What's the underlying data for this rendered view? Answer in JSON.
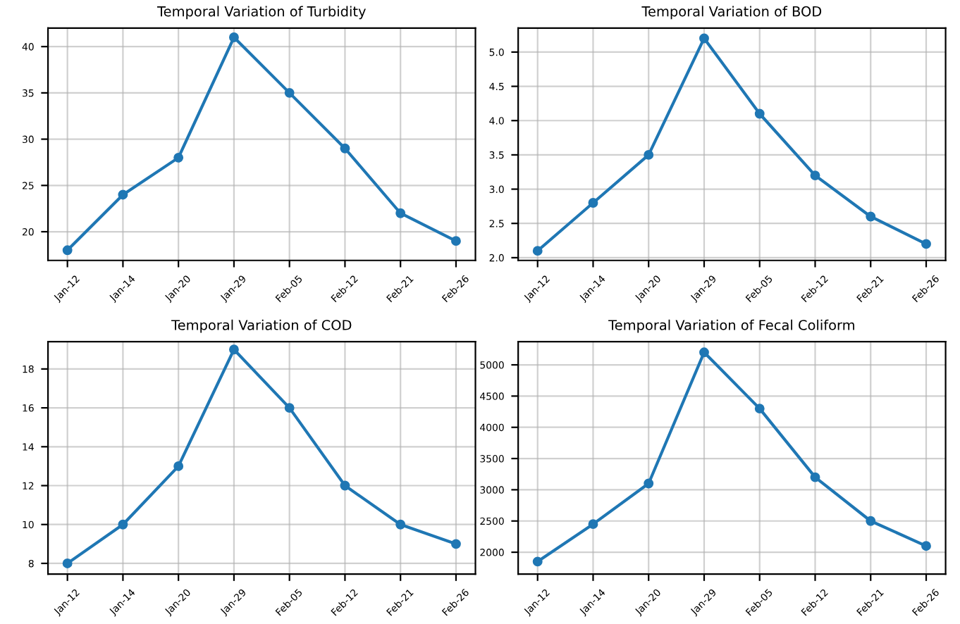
{
  "chart_data": [
    {
      "type": "line",
      "title": "Temporal Variation of Turbidity",
      "categories": [
        "Jan-12",
        "Jan-14",
        "Jan-20",
        "Jan-29",
        "Feb-05",
        "Feb-12",
        "Feb-21",
        "Feb-26"
      ],
      "series": [
        {
          "color": "#1f77b4",
          "values": [
            18,
            24,
            28,
            41,
            35,
            29,
            22,
            19
          ]
        }
      ],
      "ylim": [
        16.9,
        42
      ],
      "yticks": [
        20,
        25,
        30,
        35,
        40
      ],
      "grid": true,
      "marker": "circle",
      "line_style": "solid"
    },
    {
      "type": "line",
      "title": "Temporal Variation of BOD",
      "categories": [
        "Jan-12",
        "Jan-14",
        "Jan-20",
        "Jan-29",
        "Feb-05",
        "Feb-12",
        "Feb-21",
        "Feb-26"
      ],
      "series": [
        {
          "color": "#1f77b4",
          "values": [
            2.1,
            2.8,
            3.5,
            5.2,
            4.1,
            3.2,
            2.6,
            2.2
          ]
        }
      ],
      "ylim": [
        1.96,
        5.35
      ],
      "yticks": [
        {
          "value": 2,
          "label": "2.0"
        },
        2.5,
        {
          "value": 3,
          "label": "3.0"
        },
        3.5,
        {
          "value": 4,
          "label": "4.0"
        },
        4.5,
        {
          "value": 5,
          "label": "5.0"
        }
      ],
      "grid": true,
      "marker": "circle",
      "line_style": "solid"
    },
    {
      "type": "line",
      "title": "Temporal Variation of COD",
      "categories": [
        "Jan-12",
        "Jan-14",
        "Jan-20",
        "Jan-29",
        "Feb-05",
        "Feb-12",
        "Feb-21",
        "Feb-26"
      ],
      "series": [
        {
          "color": "#1f77b4",
          "values": [
            8,
            10,
            13,
            19,
            16,
            12,
            10,
            9
          ]
        }
      ],
      "ylim": [
        7.45,
        19.4
      ],
      "yticks": [
        8,
        10,
        12,
        14,
        16,
        18
      ],
      "grid": true,
      "marker": "circle",
      "line_style": "solid"
    },
    {
      "type": "line",
      "title": "Temporal Variation of Fecal Coliform",
      "categories": [
        "Jan-12",
        "Jan-14",
        "Jan-20",
        "Jan-29",
        "Feb-05",
        "Feb-12",
        "Feb-21",
        "Feb-26"
      ],
      "series": [
        {
          "color": "#1f77b4",
          "values": [
            1850,
            2450,
            3100,
            5200,
            4300,
            3200,
            2500,
            2100
          ]
        }
      ],
      "ylim": [
        1650,
        5370
      ],
      "yticks": [
        2000,
        2500,
        3000,
        3500,
        4000,
        4500,
        5000
      ],
      "grid": true,
      "marker": "circle",
      "line_style": "solid"
    }
  ]
}
